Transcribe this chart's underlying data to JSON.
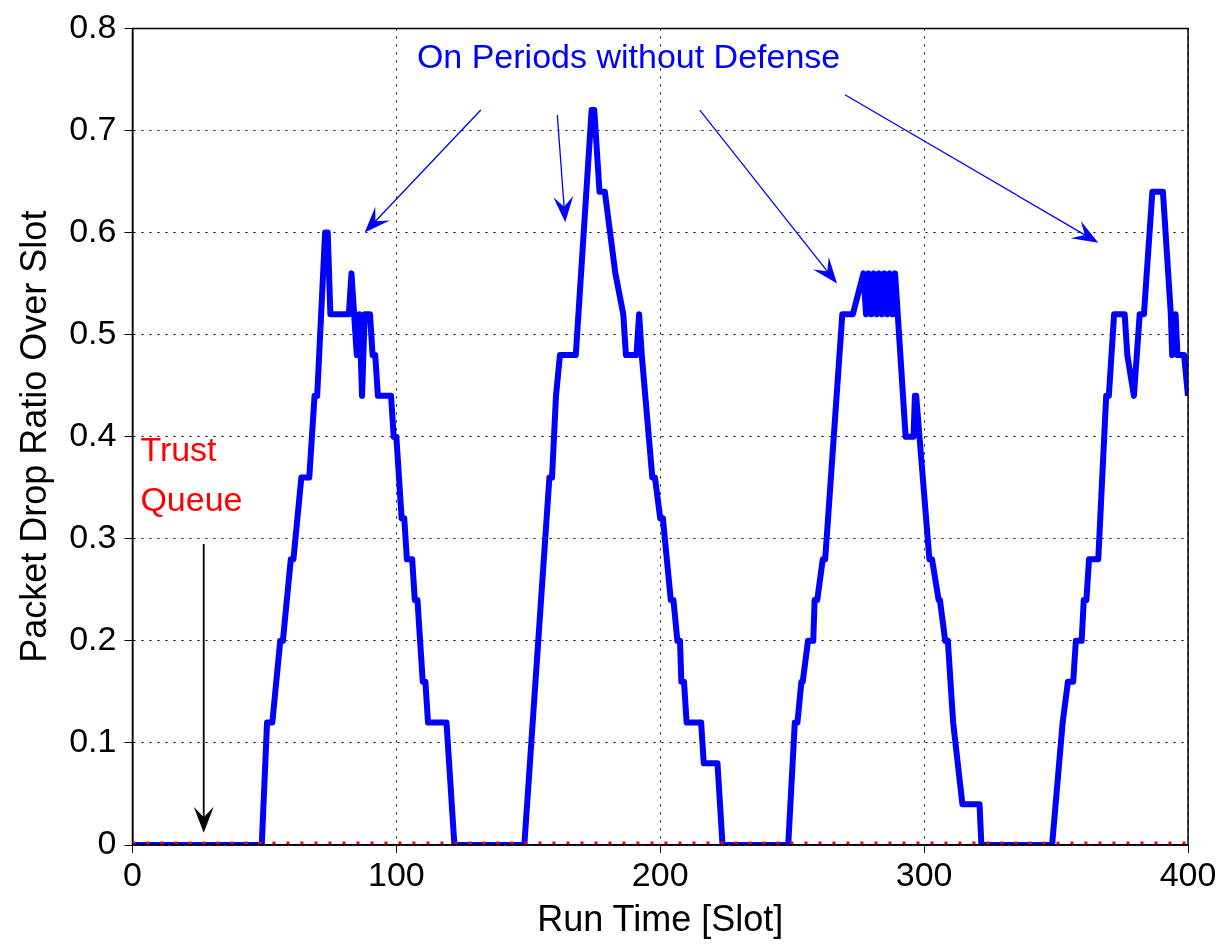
{
  "chart_data": {
    "type": "line",
    "xlabel": "Run Time [Slot]",
    "ylabel": "Packet Drop Ratio Over Slot",
    "xlim": [
      0,
      400
    ],
    "xticks": [
      0,
      100,
      200,
      300,
      400
    ],
    "ylim": [
      0,
      0.8
    ],
    "yticks": [
      0,
      0.1,
      0.2,
      0.3,
      0.4,
      0.5,
      0.6,
      0.7,
      0.8
    ],
    "grid": true,
    "legend": false,
    "marker": "none",
    "series": [
      {
        "name": "On Periods without Defense",
        "color": "#0000ff",
        "line_style": "solid",
        "x": [
          0,
          49,
          51,
          53,
          56,
          57,
          60,
          61,
          64,
          67,
          69,
          70,
          73,
          74,
          75,
          82,
          83,
          84,
          85,
          86,
          87,
          88,
          90,
          91,
          92,
          93,
          98,
          99,
          100,
          102,
          103,
          104,
          106,
          107,
          108,
          110,
          111,
          112,
          116,
          119,
          122,
          148.5,
          158,
          159,
          160.5,
          162,
          168,
          174,
          175,
          177,
          179,
          181,
          183,
          186,
          187,
          191,
          192,
          193,
          197,
          198,
          200,
          201,
          204,
          205,
          206.5,
          207.5,
          208,
          209,
          210,
          215.5,
          216.5,
          221.7,
          223.6,
          248.5,
          251,
          252,
          253.5,
          254,
          256,
          258,
          258.5,
          259.5,
          261.6,
          262.5,
          263.6,
          269,
          273,
          277,
          278,
          279,
          280,
          281,
          282,
          283,
          284,
          285,
          286,
          287,
          288,
          289,
          290,
          293,
          296,
          296.5,
          297,
          302,
          303,
          305.5,
          306,
          308,
          309,
          311,
          314.5,
          321,
          321.7,
          348.5,
          352.5,
          354.5,
          356.5,
          357.5,
          359.7,
          360.5,
          361.5,
          362.5,
          366,
          369,
          370,
          372,
          376,
          377,
          379.5,
          381.7,
          383.3,
          386.5,
          390.5,
          393.5,
          394,
          395.3,
          396,
          398.5,
          400
        ],
        "values": [
          0,
          0,
          0.12,
          0.12,
          0.2,
          0.2,
          0.28,
          0.28,
          0.36,
          0.36,
          0.44,
          0.44,
          0.6,
          0.6,
          0.52,
          0.52,
          0.56,
          0.52,
          0.48,
          0.52,
          0.44,
          0.52,
          0.52,
          0.48,
          0.48,
          0.44,
          0.44,
          0.4,
          0.4,
          0.32,
          0.32,
          0.28,
          0.28,
          0.24,
          0.24,
          0.16,
          0.16,
          0.12,
          0.12,
          0.12,
          0,
          0,
          0.36,
          0.36,
          0.44,
          0.48,
          0.48,
          0.72,
          0.72,
          0.64,
          0.64,
          0.6,
          0.56,
          0.52,
          0.48,
          0.48,
          0.52,
          0.48,
          0.36,
          0.36,
          0.32,
          0.32,
          0.24,
          0.24,
          0.2,
          0.2,
          0.16,
          0.16,
          0.12,
          0.12,
          0.08,
          0.08,
          0,
          0,
          0.12,
          0.12,
          0.16,
          0.16,
          0.2,
          0.2,
          0.24,
          0.24,
          0.28,
          0.28,
          0.32,
          0.52,
          0.52,
          0.56,
          0.52,
          0.56,
          0.52,
          0.56,
          0.52,
          0.56,
          0.52,
          0.56,
          0.52,
          0.56,
          0.52,
          0.56,
          0.52,
          0.4,
          0.4,
          0.44,
          0.44,
          0.28,
          0.28,
          0.24,
          0.24,
          0.2,
          0.2,
          0.12,
          0.04,
          0.04,
          0,
          0,
          0.12,
          0.16,
          0.16,
          0.2,
          0.2,
          0.24,
          0.24,
          0.28,
          0.28,
          0.44,
          0.44,
          0.52,
          0.52,
          0.48,
          0.44,
          0.52,
          0.52,
          0.64,
          0.64,
          0.52,
          0.48,
          0.52,
          0.48,
          0.48,
          0.44
        ]
      },
      {
        "name": "Trust Queue",
        "color": "#ff0000",
        "line_style": "dashed",
        "x": [
          0,
          400
        ],
        "values": [
          0,
          0
        ]
      }
    ]
  }
}
